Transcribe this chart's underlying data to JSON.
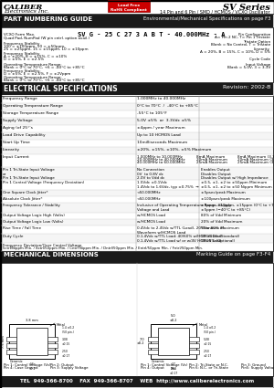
{
  "title_company": "CALIBER",
  "title_company2": "Electronics Inc.",
  "title_series": "SV Series",
  "title_desc": "14 Pin and 6 Pin / SMD / HCMOS / VCXO Oscillator",
  "rohs_text": "Lead Free\nRoHS Compliant",
  "section1_title": "PART NUMBERING GUIDE",
  "section1_right": "Environmental/Mechanical Specifications on page F3",
  "part_number_example": "SV G - 25 C 27 3 A B T - 40.000MHz - A",
  "elec_title": "ELECTRICAL SPECIFICATIONS",
  "elec_revision": "Revision: 2002-B",
  "mech_title": "MECHANICAL DIMENSIONS",
  "mech_right": "Marking Guide on page F3-F4",
  "footer": "TEL  949-366-8700    FAX  949-366-8707    WEB  http://www.caliberelectronics.com",
  "header_bg": "#1a1a1a",
  "header_fg": "#ffffff",
  "rohs_bg": "#cc0000",
  "rohs_fg": "#ffffff",
  "table_line_color": "#888888",
  "bg_color": "#ffffff",
  "border_color": "#000000"
}
